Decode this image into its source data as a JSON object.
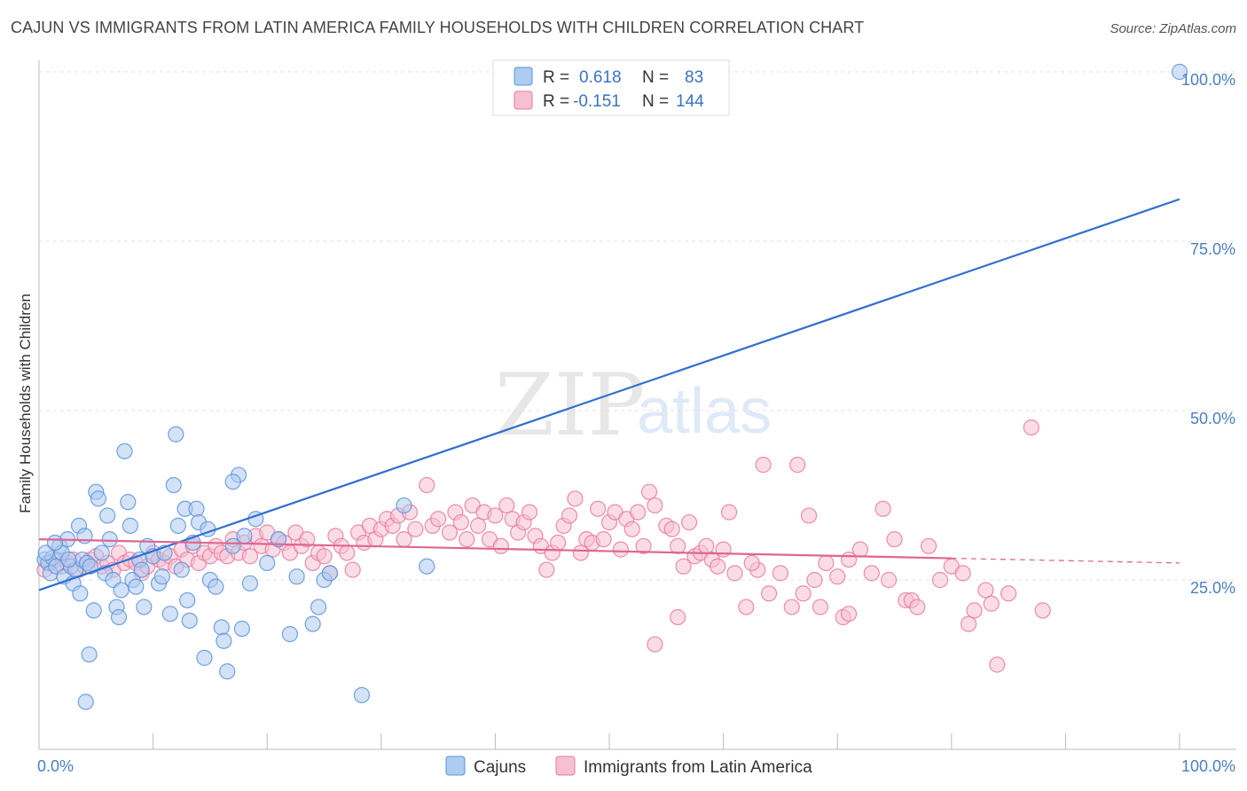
{
  "title": "CAJUN VS IMMIGRANTS FROM LATIN AMERICA FAMILY HOUSEHOLDS WITH CHILDREN CORRELATION CHART",
  "source": "Source: ZipAtlas.com",
  "watermark": {
    "zip": "ZIP",
    "atlas": "atlas"
  },
  "colors": {
    "blue_fill": "#aecbf0",
    "blue_stroke": "#5b93da",
    "blue_line": "#2f6fd0",
    "pink_fill": "#f6c0d2",
    "pink_stroke": "#e9799e",
    "pink_line": "#e0668f",
    "tick_text": "#4a7fc1"
  },
  "legend": {
    "r_label": "R =",
    "n_label": "N =",
    "rows": [
      {
        "series": "Cajuns",
        "r": "0.618",
        "n": "83"
      },
      {
        "series": "Immigrants from Latin America",
        "r": "-0.151",
        "n": "144"
      }
    ]
  },
  "chart_data": {
    "type": "scatter",
    "title": "CAJUN VS IMMIGRANTS FROM LATIN AMERICA FAMILY HOUSEHOLDS WITH CHILDREN CORRELATION CHART",
    "xlabel": "",
    "ylabel": "Family Households with Children",
    "xlim": [
      0,
      100
    ],
    "ylim": [
      0,
      102.5
    ],
    "x_tick_labels": [
      "0.0%",
      "100.0%"
    ],
    "y_ticks": [
      25,
      50,
      75,
      100
    ],
    "y_tick_labels": [
      "25.0%",
      "50.0%",
      "75.0%",
      "100.0%"
    ],
    "grid": "horizontal dashed",
    "legend_position": "top-center and bottom",
    "series": [
      {
        "name": "Cajuns",
        "color": "#aecbf0",
        "trend": {
          "x": [
            0,
            100
          ],
          "y": [
            23.5,
            81.2
          ],
          "style": "solid"
        },
        "points": [
          [
            0.5,
            28
          ],
          [
            0.8,
            27.5
          ],
          [
            1,
            26
          ],
          [
            1.2,
            28.3
          ],
          [
            1.5,
            27
          ],
          [
            1.8,
            30
          ],
          [
            2,
            29
          ],
          [
            2.2,
            25.5
          ],
          [
            2.5,
            31
          ],
          [
            2.8,
            27
          ],
          [
            3,
            24.5
          ],
          [
            3.2,
            26.5
          ],
          [
            3.5,
            33
          ],
          [
            3.8,
            28
          ],
          [
            4,
            31.5
          ],
          [
            4.2,
            27.5
          ],
          [
            4.5,
            27
          ],
          [
            4.8,
            20.5
          ],
          [
            5,
            38
          ],
          [
            5.2,
            37
          ],
          [
            5.5,
            29
          ],
          [
            5.8,
            26
          ],
          [
            6,
            34.5
          ],
          [
            6.2,
            31
          ],
          [
            6.5,
            25
          ],
          [
            6.8,
            21
          ],
          [
            7,
            19.5
          ],
          [
            7.2,
            23.5
          ],
          [
            7.5,
            44
          ],
          [
            7.8,
            36.5
          ],
          [
            8,
            33
          ],
          [
            8.2,
            25
          ],
          [
            8.5,
            24
          ],
          [
            8.8,
            28
          ],
          [
            9,
            26.5
          ],
          [
            9.5,
            30
          ],
          [
            10,
            28.5
          ],
          [
            10.5,
            24.5
          ],
          [
            10.8,
            25.5
          ],
          [
            11,
            29
          ],
          [
            11.5,
            20
          ],
          [
            11.8,
            39
          ],
          [
            12,
            46.5
          ],
          [
            12.2,
            33
          ],
          [
            12.5,
            26.5
          ],
          [
            12.8,
            35.5
          ],
          [
            13,
            22
          ],
          [
            13.2,
            19
          ],
          [
            13.5,
            30.5
          ],
          [
            13.8,
            35.5
          ],
          [
            14,
            33.5
          ],
          [
            14.5,
            13.5
          ],
          [
            14.8,
            32.5
          ],
          [
            15,
            25
          ],
          [
            15.5,
            24
          ],
          [
            16,
            18
          ],
          [
            16.2,
            16
          ],
          [
            16.5,
            11.5
          ],
          [
            17,
            30
          ],
          [
            17.5,
            40.5
          ],
          [
            17.8,
            17.8
          ],
          [
            18,
            31.5
          ],
          [
            18.5,
            24.5
          ],
          [
            19,
            34
          ],
          [
            20,
            27.5
          ],
          [
            21,
            31
          ],
          [
            22,
            17
          ],
          [
            24,
            18.5
          ],
          [
            24.5,
            21
          ],
          [
            25,
            25
          ],
          [
            25.5,
            26
          ],
          [
            17,
            39.5
          ],
          [
            0.6,
            29
          ],
          [
            1.4,
            30.5
          ],
          [
            2.6,
            28
          ],
          [
            3.6,
            23
          ],
          [
            4.4,
            14
          ],
          [
            4.1,
            7
          ],
          [
            9.2,
            21
          ],
          [
            22.6,
            25.5
          ],
          [
            28.3,
            8
          ],
          [
            32,
            36
          ],
          [
            34,
            27
          ],
          [
            100,
            100
          ]
        ]
      },
      {
        "name": "Immigrants from Latin America",
        "color": "#f6c0d2",
        "trend": {
          "x": [
            0,
            80,
            100
          ],
          "y": [
            31,
            28.2,
            27.5
          ],
          "style": "solid then dashed from 80"
        },
        "points": [
          [
            0.5,
            26.5
          ],
          [
            1,
            27.5
          ],
          [
            1.5,
            28
          ],
          [
            2,
            27
          ],
          [
            2.5,
            27.5
          ],
          [
            3,
            28
          ],
          [
            3.5,
            26.5
          ],
          [
            4,
            27
          ],
          [
            4.5,
            28
          ],
          [
            5,
            28.5
          ],
          [
            5.5,
            27
          ],
          [
            6,
            27.5
          ],
          [
            6.5,
            26.5
          ],
          [
            7,
            29
          ],
          [
            7.5,
            27.5
          ],
          [
            8,
            28
          ],
          [
            8.5,
            27.5
          ],
          [
            9,
            26
          ],
          [
            9.5,
            27
          ],
          [
            10,
            29
          ],
          [
            10.5,
            28
          ],
          [
            11,
            27.5
          ],
          [
            11.5,
            28.5
          ],
          [
            12,
            27
          ],
          [
            12.5,
            29.5
          ],
          [
            13,
            28
          ],
          [
            13.5,
            30
          ],
          [
            14,
            27.5
          ],
          [
            14.5,
            29
          ],
          [
            15,
            28.5
          ],
          [
            15.5,
            30
          ],
          [
            16,
            29
          ],
          [
            16.5,
            28.5
          ],
          [
            17,
            31
          ],
          [
            17.5,
            29
          ],
          [
            18,
            30.5
          ],
          [
            18.5,
            28.5
          ],
          [
            19,
            31.5
          ],
          [
            19.5,
            30
          ],
          [
            20,
            32
          ],
          [
            20.5,
            29.5
          ],
          [
            21,
            31
          ],
          [
            21.5,
            30.5
          ],
          [
            22,
            29
          ],
          [
            22.5,
            32
          ],
          [
            23,
            30
          ],
          [
            23.5,
            31
          ],
          [
            24,
            27.5
          ],
          [
            24.5,
            29
          ],
          [
            25,
            28.5
          ],
          [
            25.5,
            26
          ],
          [
            26,
            31.5
          ],
          [
            26.5,
            30
          ],
          [
            27,
            29
          ],
          [
            27.5,
            26.5
          ],
          [
            28,
            32
          ],
          [
            28.5,
            30.5
          ],
          [
            29,
            33
          ],
          [
            29.5,
            31
          ],
          [
            30,
            32.5
          ],
          [
            30.5,
            34
          ],
          [
            31,
            33
          ],
          [
            31.5,
            34.5
          ],
          [
            32,
            31
          ],
          [
            32.5,
            35
          ],
          [
            33,
            32.5
          ],
          [
            34,
            39
          ],
          [
            34.5,
            33
          ],
          [
            35,
            34
          ],
          [
            36,
            32
          ],
          [
            36.5,
            35
          ],
          [
            37,
            33.5
          ],
          [
            37.5,
            31
          ],
          [
            38,
            36
          ],
          [
            38.5,
            33
          ],
          [
            39,
            35
          ],
          [
            39.5,
            31
          ],
          [
            40,
            34.5
          ],
          [
            40.5,
            30
          ],
          [
            41,
            36
          ],
          [
            41.5,
            34
          ],
          [
            42,
            32
          ],
          [
            42.5,
            33.5
          ],
          [
            43,
            35
          ],
          [
            43.5,
            31.5
          ],
          [
            44,
            30
          ],
          [
            44.5,
            26.5
          ],
          [
            45,
            29
          ],
          [
            45.5,
            30.5
          ],
          [
            46,
            33
          ],
          [
            46.5,
            34.5
          ],
          [
            47,
            37
          ],
          [
            47.5,
            29
          ],
          [
            48,
            31
          ],
          [
            48.5,
            30.5
          ],
          [
            49,
            35.5
          ],
          [
            49.5,
            31
          ],
          [
            50,
            33.5
          ],
          [
            50.5,
            35
          ],
          [
            51,
            29.5
          ],
          [
            51.5,
            34
          ],
          [
            52,
            32.5
          ],
          [
            52.5,
            35
          ],
          [
            53,
            30
          ],
          [
            53.5,
            38
          ],
          [
            54,
            36
          ],
          [
            55,
            33
          ],
          [
            55.5,
            32.5
          ],
          [
            56,
            30
          ],
          [
            56.5,
            27
          ],
          [
            57,
            33.5
          ],
          [
            57.5,
            28.5
          ],
          [
            58,
            29
          ],
          [
            58.5,
            30
          ],
          [
            59,
            28
          ],
          [
            59.5,
            27
          ],
          [
            60,
            29.5
          ],
          [
            60.5,
            35
          ],
          [
            61,
            26
          ],
          [
            62,
            21
          ],
          [
            63,
            26.5
          ],
          [
            63.5,
            42
          ],
          [
            64,
            23
          ],
          [
            65,
            26
          ],
          [
            66,
            21
          ],
          [
            66.5,
            42
          ],
          [
            67,
            23
          ],
          [
            67.5,
            34.5
          ],
          [
            68,
            25
          ],
          [
            68.5,
            21
          ],
          [
            69,
            27.5
          ],
          [
            70,
            25.5
          ],
          [
            70.5,
            19.5
          ],
          [
            71,
            28
          ],
          [
            72,
            29.5
          ],
          [
            73,
            26
          ],
          [
            74,
            35.5
          ],
          [
            74.5,
            25
          ],
          [
            75,
            31
          ],
          [
            76,
            22
          ],
          [
            76.5,
            22
          ],
          [
            77,
            21
          ],
          [
            78,
            30
          ],
          [
            79,
            25
          ],
          [
            80,
            27
          ],
          [
            81,
            26
          ],
          [
            81.5,
            18.5
          ],
          [
            82,
            20.5
          ],
          [
            83,
            23.5
          ],
          [
            84,
            12.5
          ],
          [
            85,
            23
          ],
          [
            87,
            47.5
          ],
          [
            88,
            20.5
          ],
          [
            54,
            15.5
          ],
          [
            56,
            19.5
          ],
          [
            62.5,
            27.5
          ],
          [
            71,
            20
          ],
          [
            83.5,
            21.5
          ]
        ]
      }
    ]
  }
}
